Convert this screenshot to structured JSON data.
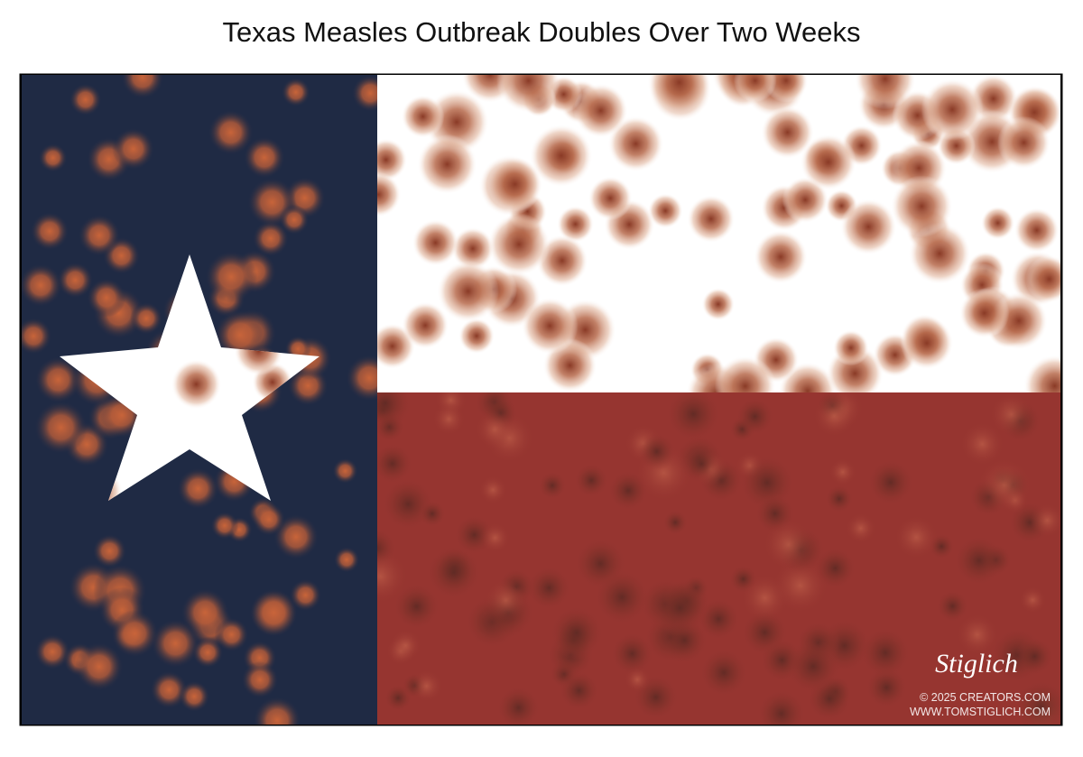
{
  "header": {
    "title": "Texas Measles Outbreak Doubles Over Two Weeks"
  },
  "signature": {
    "name": "Stiglich",
    "copyright": "© 2025 CREATORS.COM",
    "website": "WWW.TOMSTIGLICH.COM"
  }
}
